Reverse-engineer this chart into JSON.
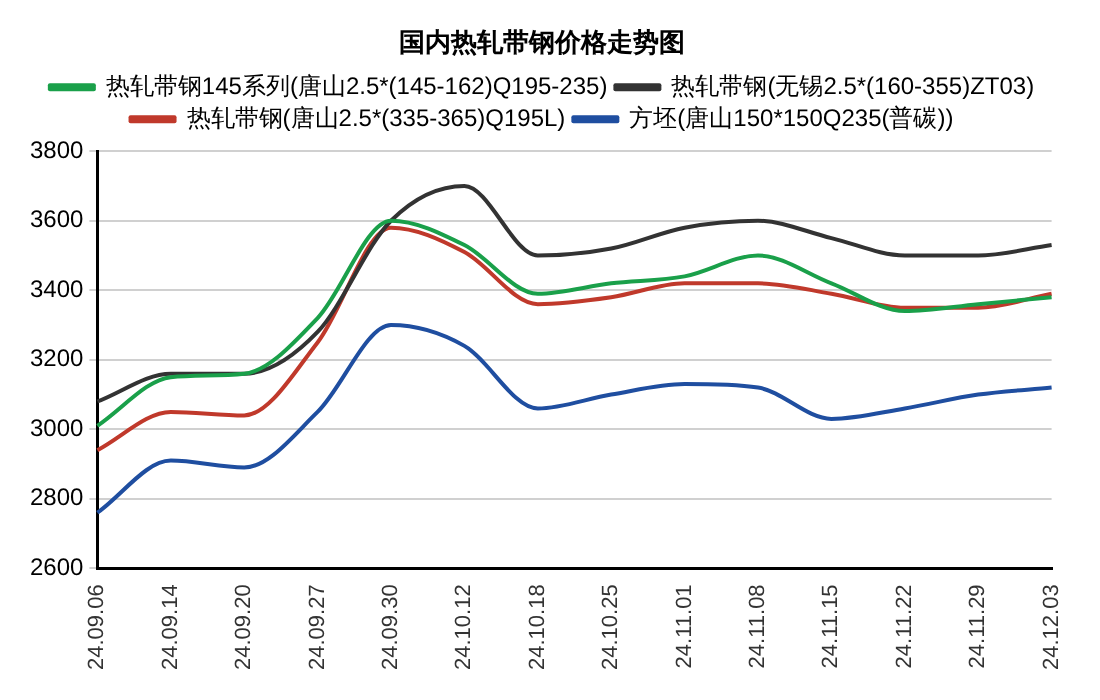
{
  "chart_data": {
    "type": "line",
    "title": "国内热轧带钢价格走势图",
    "categories": [
      "24.09.06",
      "24.09.14",
      "24.09.20",
      "24.09.27",
      "24.09.30",
      "24.10.12",
      "24.10.18",
      "24.10.25",
      "24.11.01",
      "24.11.08",
      "24.11.15",
      "24.11.22",
      "24.11.29",
      "24.12.03"
    ],
    "series": [
      {
        "name": "热轧带钢145系列(唐山2.5*(145-162)Q195-235)",
        "color": "#1aa04a",
        "values": [
          3010,
          3150,
          3160,
          3320,
          3600,
          3530,
          3390,
          3420,
          3440,
          3500,
          3420,
          3340,
          3360,
          3380
        ]
      },
      {
        "name": "热轧带钢(无锡2.5*(160-355)ZT03)",
        "color": "#333333",
        "values": [
          3080,
          3160,
          3160,
          3280,
          3600,
          3700,
          3500,
          3520,
          3580,
          3600,
          3550,
          3500,
          3500,
          3530
        ]
      },
      {
        "name": "热轧带钢(唐山2.5*(335-365)Q195L)",
        "color": "#c0392b",
        "values": [
          2940,
          3050,
          3040,
          3250,
          3580,
          3510,
          3360,
          3380,
          3420,
          3420,
          3390,
          3350,
          3350,
          3390
        ]
      },
      {
        "name": "方坯(唐山150*150Q235(普碳))",
        "color": "#1f4ea0",
        "values": [
          2760,
          2910,
          2890,
          3050,
          3300,
          3240,
          3060,
          3100,
          3130,
          3120,
          3030,
          3060,
          3100,
          3120
        ]
      }
    ],
    "ylim": [
      2600,
      3800
    ],
    "yticks": [
      2600,
      2800,
      3000,
      3200,
      3400,
      3600,
      3800
    ],
    "grid": "y",
    "legend": "top",
    "marker": "none",
    "line_style": "solid"
  }
}
